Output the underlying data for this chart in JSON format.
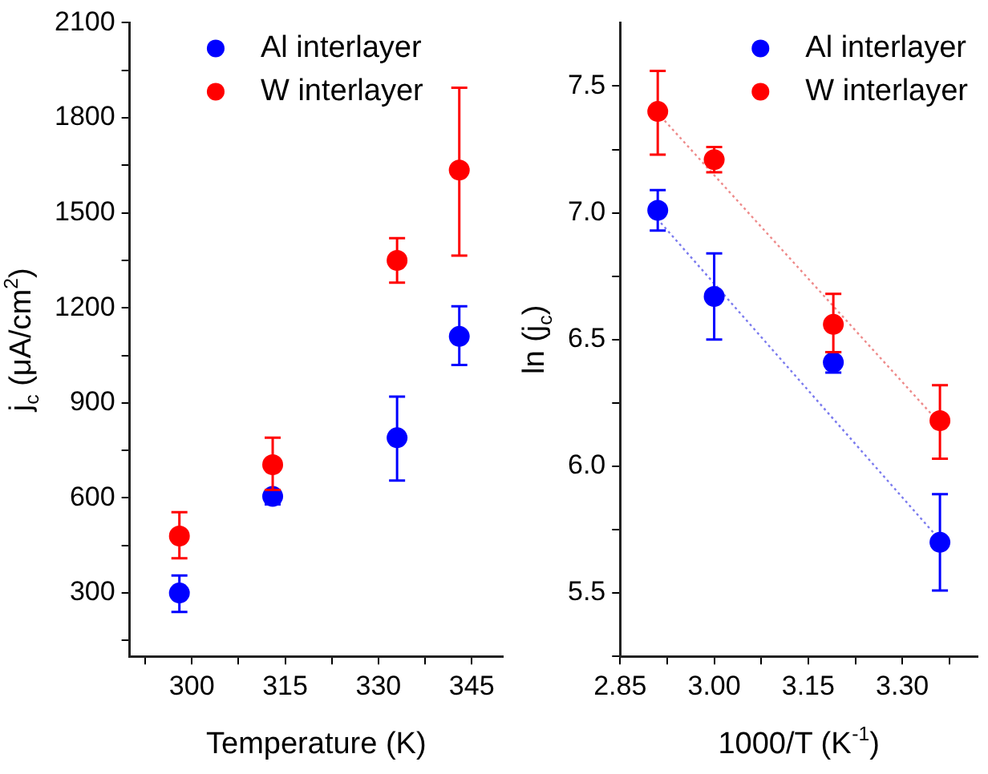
{
  "chart_data": [
    {
      "type": "scatter",
      "xlabel": "Temperature (K)",
      "ylabel": "j$_{c}$ (μA/cm$^{2}$)",
      "xlim": [
        290,
        350
      ],
      "xticks": [
        {
          "value": 292.5,
          "label": null
        },
        300,
        {
          "value": 307.5,
          "label": null
        },
        315,
        {
          "value": 322.5,
          "label": null
        },
        330,
        {
          "value": 337.5,
          "label": null
        },
        345
      ],
      "ylim": [
        100,
        2100
      ],
      "yticks": [
        {
          "value": 150,
          "label": null
        },
        300,
        {
          "value": 450,
          "label": null
        },
        600,
        {
          "value": 750,
          "label": null
        },
        900,
        {
          "value": 1050,
          "label": null
        },
        1200,
        {
          "value": 1350,
          "label": null
        },
        1500,
        {
          "value": 1650,
          "label": null
        },
        1800,
        {
          "value": 1950,
          "label": null
        },
        2100
      ],
      "legend": "top",
      "marker": "circle",
      "grid": false,
      "series": [
        {
          "name": "Al interlayer",
          "color": "#0000ff",
          "x": [
            298,
            313,
            333,
            343
          ],
          "values": [
            300,
            605,
            790,
            1110
          ],
          "errors": [
            [
              240,
              355
            ],
            [
              580,
              625
            ],
            [
              655,
              920
            ],
            [
              1020,
              1205
            ]
          ]
        },
        {
          "name": "W interlayer",
          "color": "#ff0000",
          "x": [
            298,
            313,
            333,
            343
          ],
          "values": [
            480,
            705,
            1350,
            1635
          ],
          "errors": [
            [
              410,
              555
            ],
            [
              625,
              790
            ],
            [
              1280,
              1420
            ],
            [
              1365,
              1895
            ]
          ]
        }
      ]
    },
    {
      "type": "scatter",
      "xlabel": "1000/T (K$^{-1}$)",
      "ylabel": "ln (j$_{c}$)",
      "xlim": [
        2.85,
        3.42
      ],
      "xticks": [
        2.85,
        {
          "value": 2.925,
          "label": null
        },
        "3.00",
        {
          "value": 3.075,
          "label": null
        },
        3.15,
        {
          "value": 3.225,
          "label": null
        },
        "3.30",
        {
          "value": 3.375,
          "label": null
        }
      ],
      "ylim": [
        5.25,
        7.75
      ],
      "yticks": [
        {
          "value": 5.25,
          "label": null
        },
        5.5,
        {
          "value": 5.75,
          "label": null
        },
        "6.0",
        {
          "value": 6.25,
          "label": null
        },
        6.5,
        {
          "value": 6.75,
          "label": null
        },
        "7.0",
        {
          "value": 7.25,
          "label": null
        },
        7.5
      ],
      "legend": "top right",
      "marker": "circle",
      "grid": false,
      "series": [
        {
          "name": "Al interlayer",
          "color": "#0000ff",
          "x": [
            2.91,
            3.0,
            3.19,
            3.36
          ],
          "values": [
            7.01,
            6.67,
            6.41,
            5.7
          ],
          "errors": [
            [
              6.93,
              7.09
            ],
            [
              6.5,
              6.84
            ],
            [
              6.37,
              6.45
            ],
            [
              5.51,
              5.89
            ]
          ]
        },
        {
          "name": "W interlayer",
          "color": "#ff0000",
          "x": [
            2.91,
            3.0,
            3.19,
            3.36
          ],
          "values": [
            7.4,
            7.21,
            6.56,
            6.18
          ],
          "errors": [
            [
              7.23,
              7.56
            ],
            [
              7.16,
              7.26
            ],
            [
              6.45,
              6.68
            ],
            [
              6.03,
              6.32
            ]
          ]
        },
        {
          "type": "line",
          "color": "#7a7aee",
          "line_style": "dotted",
          "marker": "none",
          "x": [
            2.915,
            3.356
          ],
          "values": [
            6.96,
            5.72
          ]
        },
        {
          "type": "line",
          "color": "#ee8a8a",
          "line_style": "dotted",
          "marker": "none",
          "x": [
            2.915,
            3.356
          ],
          "values": [
            7.38,
            6.18
          ]
        }
      ]
    }
  ]
}
